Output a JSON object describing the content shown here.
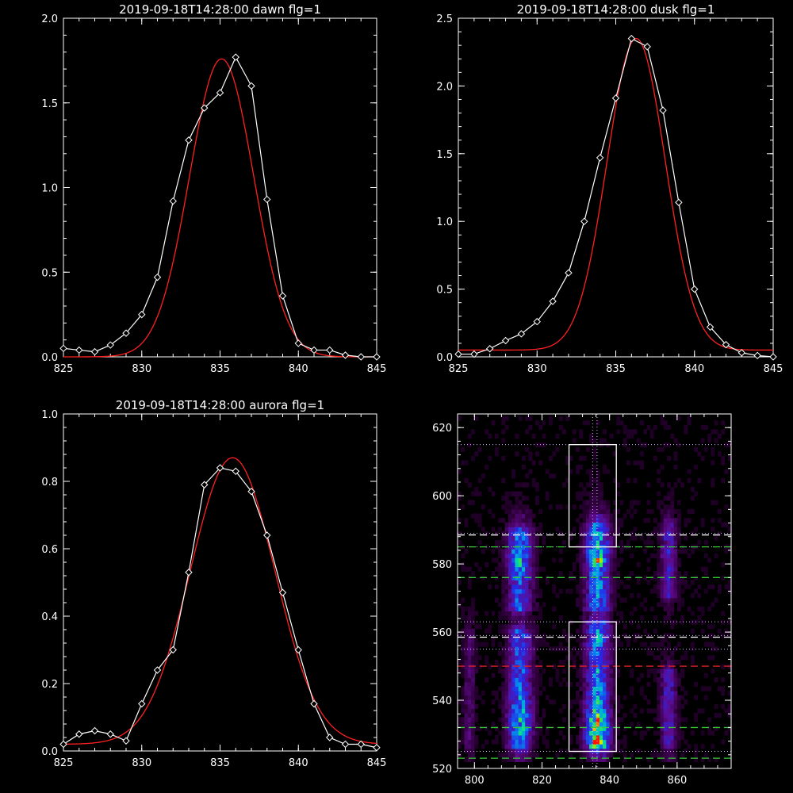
{
  "colors": {
    "background": "#000000",
    "axes": "#ffffff",
    "observed": "#ffffff",
    "fit": "#ff2020",
    "dash_white": "#ffffff",
    "dash_green": "#33cc33",
    "dash_red": "#dd2222",
    "dot_line": "#d8b8ff"
  },
  "chart_data": [
    {
      "type": "line",
      "title": "2019-09-18T14:28:00 dawn flg=1",
      "xlim": [
        825,
        845
      ],
      "ylim": [
        0,
        2.0
      ],
      "xticks": [
        "825",
        "830",
        "835",
        "840",
        "845"
      ],
      "yticks": [
        "0.0",
        "0.5",
        "1.0",
        "1.5",
        "2.0"
      ],
      "xlabel": "",
      "ylabel": "",
      "series": [
        {
          "role": "observed",
          "marker": "diamond",
          "x": [
            825,
            826,
            827,
            828,
            829,
            830,
            831,
            832,
            833,
            834,
            835,
            836,
            837,
            838,
            839,
            840,
            841,
            842,
            843,
            844,
            845
          ],
          "y": [
            0.05,
            0.04,
            0.03,
            0.07,
            0.14,
            0.25,
            0.47,
            0.92,
            1.28,
            1.47,
            1.56,
            1.77,
            1.6,
            0.93,
            0.36,
            0.08,
            0.04,
            0.04,
            0.01,
            0.0,
            0.0
          ]
        },
        {
          "role": "fit",
          "model": "gaussian",
          "center": 835.1,
          "sigma": 2.05,
          "amplitude": 1.76,
          "baseline": 0.0
        }
      ]
    },
    {
      "type": "line",
      "title": "2019-09-18T14:28:00 dusk flg=1",
      "xlim": [
        825,
        845
      ],
      "ylim": [
        0,
        2.5
      ],
      "xticks": [
        "825",
        "830",
        "835",
        "840",
        "845"
      ],
      "yticks": [
        "0.0",
        "0.5",
        "1.0",
        "1.5",
        "2.0",
        "2.5"
      ],
      "xlabel": "",
      "ylabel": "",
      "series": [
        {
          "role": "observed",
          "marker": "diamond",
          "x": [
            825,
            826,
            827,
            828,
            829,
            830,
            831,
            832,
            833,
            834,
            835,
            836,
            837,
            838,
            839,
            840,
            841,
            842,
            843,
            844,
            845
          ],
          "y": [
            0.02,
            0.02,
            0.06,
            0.12,
            0.17,
            0.26,
            0.41,
            0.62,
            1.0,
            1.47,
            1.91,
            2.35,
            2.29,
            1.82,
            1.14,
            0.5,
            0.22,
            0.09,
            0.03,
            0.01,
            0.0
          ]
        },
        {
          "role": "fit",
          "model": "gaussian",
          "center": 836.3,
          "sigma": 1.85,
          "amplitude": 2.3,
          "baseline": 0.05
        }
      ]
    },
    {
      "type": "line",
      "title": "2019-09-18T14:28:00 aurora flg=1",
      "xlim": [
        825,
        845
      ],
      "ylim": [
        0,
        1.0
      ],
      "xticks": [
        "825",
        "830",
        "835",
        "840",
        "845"
      ],
      "yticks": [
        "0.0",
        "0.2",
        "0.4",
        "0.6",
        "0.8",
        "1.0"
      ],
      "xlabel": "",
      "ylabel": "",
      "series": [
        {
          "role": "observed",
          "marker": "diamond",
          "x": [
            825,
            826,
            827,
            828,
            829,
            830,
            831,
            832,
            833,
            834,
            835,
            836,
            837,
            838,
            839,
            840,
            841,
            842,
            843,
            844,
            845
          ],
          "y": [
            0.02,
            0.05,
            0.06,
            0.05,
            0.03,
            0.14,
            0.24,
            0.3,
            0.53,
            0.79,
            0.84,
            0.83,
            0.77,
            0.64,
            0.47,
            0.3,
            0.14,
            0.04,
            0.02,
            0.02,
            0.01
          ]
        },
        {
          "role": "fit",
          "model": "gaussian",
          "center": 835.8,
          "sigma": 2.7,
          "amplitude": 0.85,
          "baseline": 0.02
        }
      ]
    },
    {
      "type": "heatmap",
      "title": "",
      "xlim": [
        795,
        876
      ],
      "ylim": [
        520,
        624
      ],
      "xticks": [
        "800",
        "820",
        "840",
        "860"
      ],
      "yticks": [
        "520",
        "540",
        "560",
        "580",
        "600",
        "620"
      ],
      "xlabel": "",
      "ylabel": "",
      "colormap": "rainbow",
      "emission_columns": [
        {
          "x": 813,
          "width": 6,
          "y_ranges": [
            [
              525,
              560
            ],
            [
              566,
              590
            ]
          ],
          "peak": 0.65
        },
        {
          "x": 836,
          "width": 6,
          "y_ranges": [
            [
              525,
              563
            ],
            [
              566,
              592
            ]
          ],
          "peak": 1.0
        },
        {
          "x": 857,
          "width": 4,
          "y_ranges": [
            [
              525,
              548
            ],
            [
              570,
              592
            ]
          ],
          "peak": 0.3
        },
        {
          "x": 798,
          "width": 3,
          "y_ranges": [
            [
              525,
              560
            ]
          ],
          "peak": 0.15
        }
      ],
      "boxes": [
        {
          "x": [
            828,
            842
          ],
          "y": [
            585,
            615
          ]
        },
        {
          "x": [
            828,
            842
          ],
          "y": [
            525,
            563
          ]
        }
      ],
      "dotted_vertical_lines": [
        835,
        836.3
      ],
      "dotted_horizontal_lines": [
        615,
        589,
        585,
        563,
        559,
        555,
        525
      ],
      "dashed_horizontal_lines": [
        {
          "y": 588.5,
          "color": "white"
        },
        {
          "y": 585,
          "color": "green"
        },
        {
          "y": 576,
          "color": "green"
        },
        {
          "y": 558.5,
          "color": "white"
        },
        {
          "y": 550,
          "color": "red"
        },
        {
          "y": 532,
          "color": "green"
        },
        {
          "y": 523,
          "color": "green"
        }
      ]
    }
  ]
}
